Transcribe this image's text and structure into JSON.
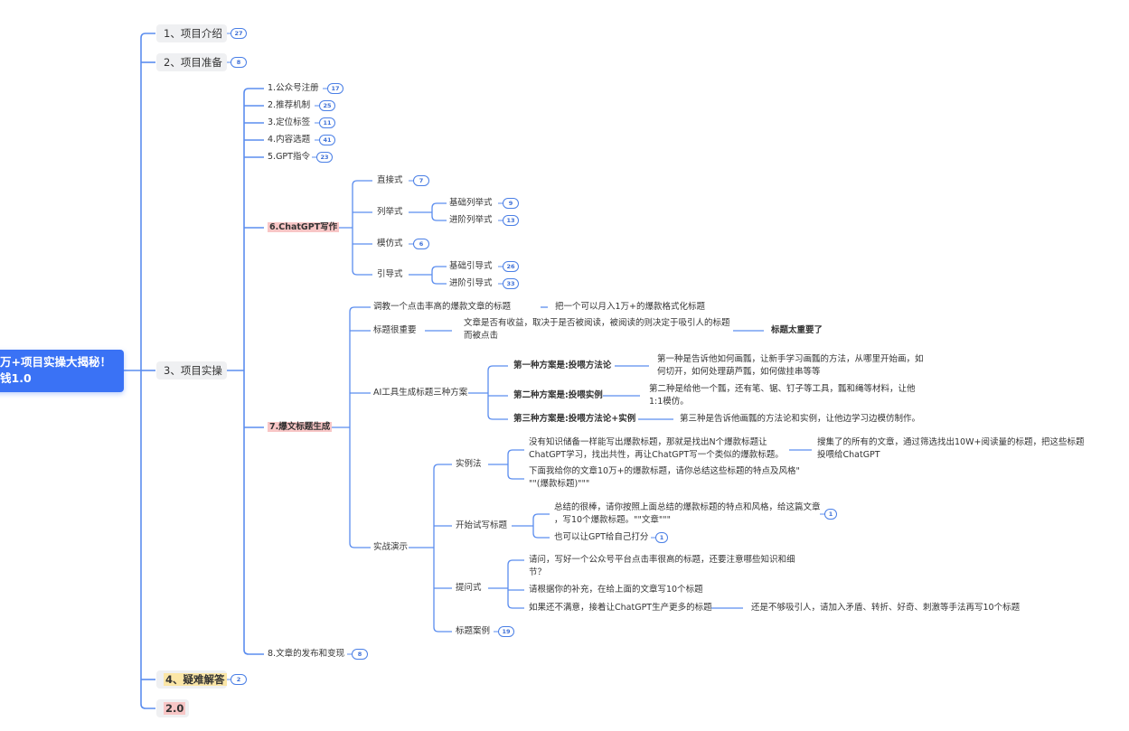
{
  "root": {
    "line1": "万+项目实操大揭秘！",
    "line2": "钱1.0"
  },
  "level1": [
    {
      "label": "1、项目介绍",
      "badge": "27"
    },
    {
      "label": "2、项目准备",
      "badge": "8"
    },
    {
      "label": "3、项目实操"
    },
    {
      "label": "4、疑难解答",
      "badge": "2",
      "highlight": "#fbe6a6"
    },
    {
      "label": "2.0",
      "highlight": "#f8c6c6"
    }
  ],
  "practice": [
    {
      "label": "1.公众号注册",
      "badge": "17"
    },
    {
      "label": "2.推荐机制",
      "badge": "25"
    },
    {
      "label": "3.定位标签",
      "badge": "11"
    },
    {
      "label": "4.内容选题",
      "badge": "41"
    },
    {
      "label": "5.GPT指令",
      "badge": "23"
    },
    {
      "label": "6.ChatGPT写作"
    },
    {
      "label": "7.爆文标题生成"
    },
    {
      "label": "8.文章的发布和变现",
      "badge": "8"
    }
  ],
  "writing": {
    "direct": {
      "label": "直接式",
      "badge": "7"
    },
    "list": {
      "label": "列举式",
      "children": [
        {
          "label": "基础列举式",
          "badge": "9"
        },
        {
          "label": "进阶列举式",
          "badge": "13"
        }
      ]
    },
    "imitate": {
      "label": "模仿式",
      "badge": "6"
    },
    "guide": {
      "label": "引导式",
      "children": [
        {
          "label": "基础引导式",
          "badge": "26"
        },
        {
          "label": "进阶引导式",
          "badge": "33"
        }
      ]
    }
  },
  "titles": {
    "train": {
      "label": "调教一个点击率高的爆款文章的标题",
      "child": "把一个可以月入1万+的爆款格式化标题"
    },
    "important": {
      "label": "标题很重要",
      "child_line1": "文章是否有收益，取决于是否被阅读，被阅读的则决定于吸引人的标题",
      "child_line2": "而被点击",
      "grandchild": "标题太重要了"
    },
    "ai": {
      "label": "AI工具生成标题三种方案",
      "plans": [
        {
          "label": "第一种方案是:投喂方法论",
          "line1": "第一种是告诉他如何画瓢，让新手学习画瓢的方法，从哪里开始画，如",
          "line2": "何切开，如何处理葫芦瓢，如何做挂串等等"
        },
        {
          "label": "第二种方案是:投喂实例",
          "line1": "第二种是给他一个瓢，还有笔、锯、钉子等工具，瓢和绳等材料，让他",
          "line2": "1:1模仿。"
        },
        {
          "label": "第三种方案是:投喂方法论+实例",
          "line1": "第三种是告诉他画瓢的方法论和实例，让他边学习边模仿制作。"
        }
      ]
    },
    "demo": {
      "label": "实战演示",
      "example": {
        "label": "实例法",
        "a_line1": "没有知识储备一样能写出爆款标题，那就是找出N个爆款标题让",
        "a_line2": "ChatGPT学习，找出共性，再让ChatGPT写一个类似的爆款标题。",
        "a_child_line1": "搜集了的所有的文章，通过筛选找出10W+阅读量的标题，把这些标题",
        "a_child_line2": "投喂给ChatGPT",
        "b_line1": "下面我给你的文章10万+的爆款标题，请你总结这些标题的特点及风格\"",
        "b_line2": "\"\"(爆款标题)\"\"\""
      },
      "trial": {
        "label": "开始试写标题",
        "a_line1": "总结的很棒，请你按照上面总结的爆款标题的特点和风格，给这篇文章",
        "a_line2": "，写10个爆款标题。\"\"文章\"\"\"",
        "a_badge": "1",
        "b": "也可以让GPT给自己打分",
        "b_badge": "1"
      },
      "ask": {
        "label": "提问式",
        "a_line1": "请问，写好一个公众号平台点击率很高的标题，还要注意哪些知识和细",
        "a_line2": "节？",
        "b": "请根据你的补充，在给上面的文章写10个标题",
        "c": "如果还不满意，接着让ChatGPT生产更多的标题",
        "c_child": "还是不够吸引人，请加入矛盾、转折、好奇、刺激等手法再写10个标题"
      },
      "cases": {
        "label": "标题案例",
        "badge": "19"
      }
    }
  },
  "colors": {
    "root": "#3a72f5",
    "line": "#5b8def",
    "node_bg": "#eff0f2",
    "pink": "#f8c6c6",
    "yellow": "#fbe6a6"
  }
}
